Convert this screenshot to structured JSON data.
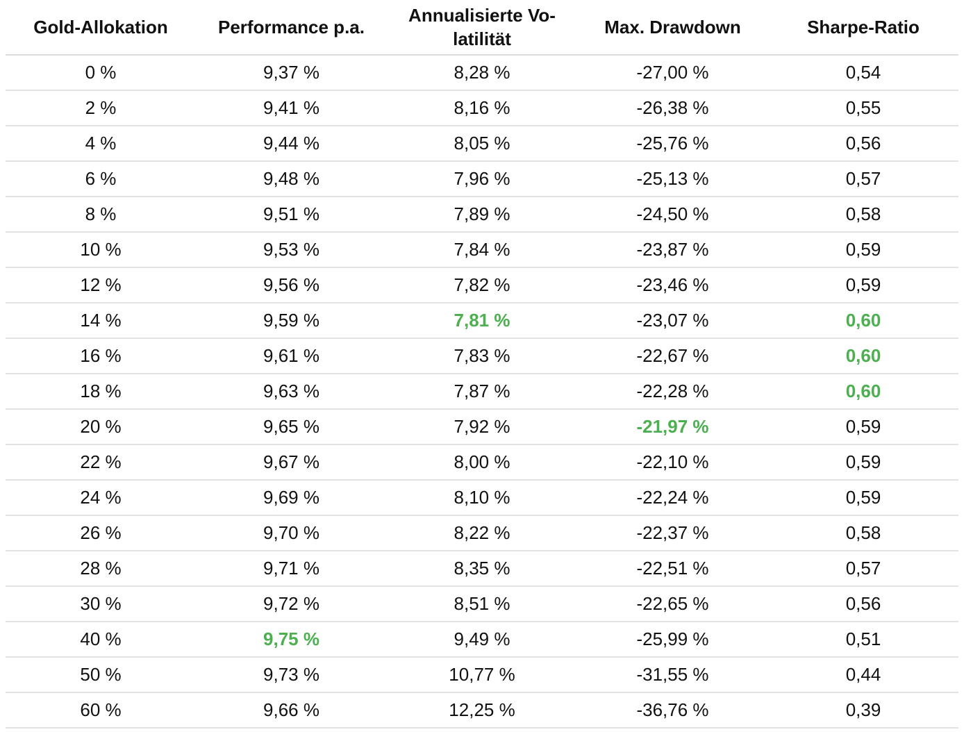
{
  "colors": {
    "highlight": "#4caf50",
    "text": "#111111",
    "divider": "#e2e2e2"
  },
  "table": {
    "headers": [
      "Gold-Allokation",
      "Performance p.a.",
      "Annualisierte Vo-latilität",
      "Max. Drawdown",
      "Sharpe-Ratio"
    ],
    "rows": [
      [
        {
          "v": "0 %"
        },
        {
          "v": "9,37 %"
        },
        {
          "v": "8,28 %"
        },
        {
          "v": "-27,00 %"
        },
        {
          "v": "0,54"
        }
      ],
      [
        {
          "v": "2 %"
        },
        {
          "v": "9,41 %"
        },
        {
          "v": "8,16 %"
        },
        {
          "v": "-26,38 %"
        },
        {
          "v": "0,55"
        }
      ],
      [
        {
          "v": "4 %"
        },
        {
          "v": "9,44 %"
        },
        {
          "v": "8,05 %"
        },
        {
          "v": "-25,76 %"
        },
        {
          "v": "0,56"
        }
      ],
      [
        {
          "v": "6 %"
        },
        {
          "v": "9,48 %"
        },
        {
          "v": "7,96 %"
        },
        {
          "v": "-25,13 %"
        },
        {
          "v": "0,57"
        }
      ],
      [
        {
          "v": "8 %"
        },
        {
          "v": "9,51 %"
        },
        {
          "v": "7,89 %"
        },
        {
          "v": "-24,50 %"
        },
        {
          "v": "0,58"
        }
      ],
      [
        {
          "v": "10 %"
        },
        {
          "v": "9,53 %"
        },
        {
          "v": "7,84 %"
        },
        {
          "v": "-23,87 %"
        },
        {
          "v": "0,59"
        }
      ],
      [
        {
          "v": "12 %"
        },
        {
          "v": "9,56 %"
        },
        {
          "v": "7,82 %"
        },
        {
          "v": "-23,46 %"
        },
        {
          "v": "0,59"
        }
      ],
      [
        {
          "v": "14 %"
        },
        {
          "v": "9,59 %"
        },
        {
          "v": "7,81 %",
          "hl": true
        },
        {
          "v": "-23,07 %"
        },
        {
          "v": "0,60",
          "hl": true
        }
      ],
      [
        {
          "v": "16 %"
        },
        {
          "v": "9,61 %"
        },
        {
          "v": "7,83 %"
        },
        {
          "v": "-22,67 %"
        },
        {
          "v": "0,60",
          "hl": true
        }
      ],
      [
        {
          "v": "18 %"
        },
        {
          "v": "9,63 %"
        },
        {
          "v": "7,87 %"
        },
        {
          "v": "-22,28 %"
        },
        {
          "v": "0,60",
          "hl": true
        }
      ],
      [
        {
          "v": "20 %"
        },
        {
          "v": "9,65 %"
        },
        {
          "v": "7,92 %"
        },
        {
          "v": "-21,97 %",
          "hl": true
        },
        {
          "v": "0,59"
        }
      ],
      [
        {
          "v": "22 %"
        },
        {
          "v": "9,67 %"
        },
        {
          "v": "8,00 %"
        },
        {
          "v": "-22,10 %"
        },
        {
          "v": "0,59"
        }
      ],
      [
        {
          "v": "24 %"
        },
        {
          "v": "9,69 %"
        },
        {
          "v": "8,10 %"
        },
        {
          "v": "-22,24 %"
        },
        {
          "v": "0,59"
        }
      ],
      [
        {
          "v": "26 %"
        },
        {
          "v": "9,70 %"
        },
        {
          "v": "8,22 %"
        },
        {
          "v": "-22,37 %"
        },
        {
          "v": "0,58"
        }
      ],
      [
        {
          "v": "28 %"
        },
        {
          "v": "9,71 %"
        },
        {
          "v": "8,35 %"
        },
        {
          "v": "-22,51 %"
        },
        {
          "v": "0,57"
        }
      ],
      [
        {
          "v": "30 %"
        },
        {
          "v": "9,72 %"
        },
        {
          "v": "8,51 %"
        },
        {
          "v": "-22,65 %"
        },
        {
          "v": "0,56"
        }
      ],
      [
        {
          "v": "40 %"
        },
        {
          "v": "9,75 %",
          "hl": true
        },
        {
          "v": "9,49 %"
        },
        {
          "v": "-25,99 %"
        },
        {
          "v": "0,51"
        }
      ],
      [
        {
          "v": "50 %"
        },
        {
          "v": "9,73 %"
        },
        {
          "v": "10,77 %"
        },
        {
          "v": "-31,55 %"
        },
        {
          "v": "0,44"
        }
      ],
      [
        {
          "v": "60 %"
        },
        {
          "v": "9,66 %"
        },
        {
          "v": "12,25 %"
        },
        {
          "v": "-36,76 %"
        },
        {
          "v": "0,39"
        }
      ]
    ]
  }
}
